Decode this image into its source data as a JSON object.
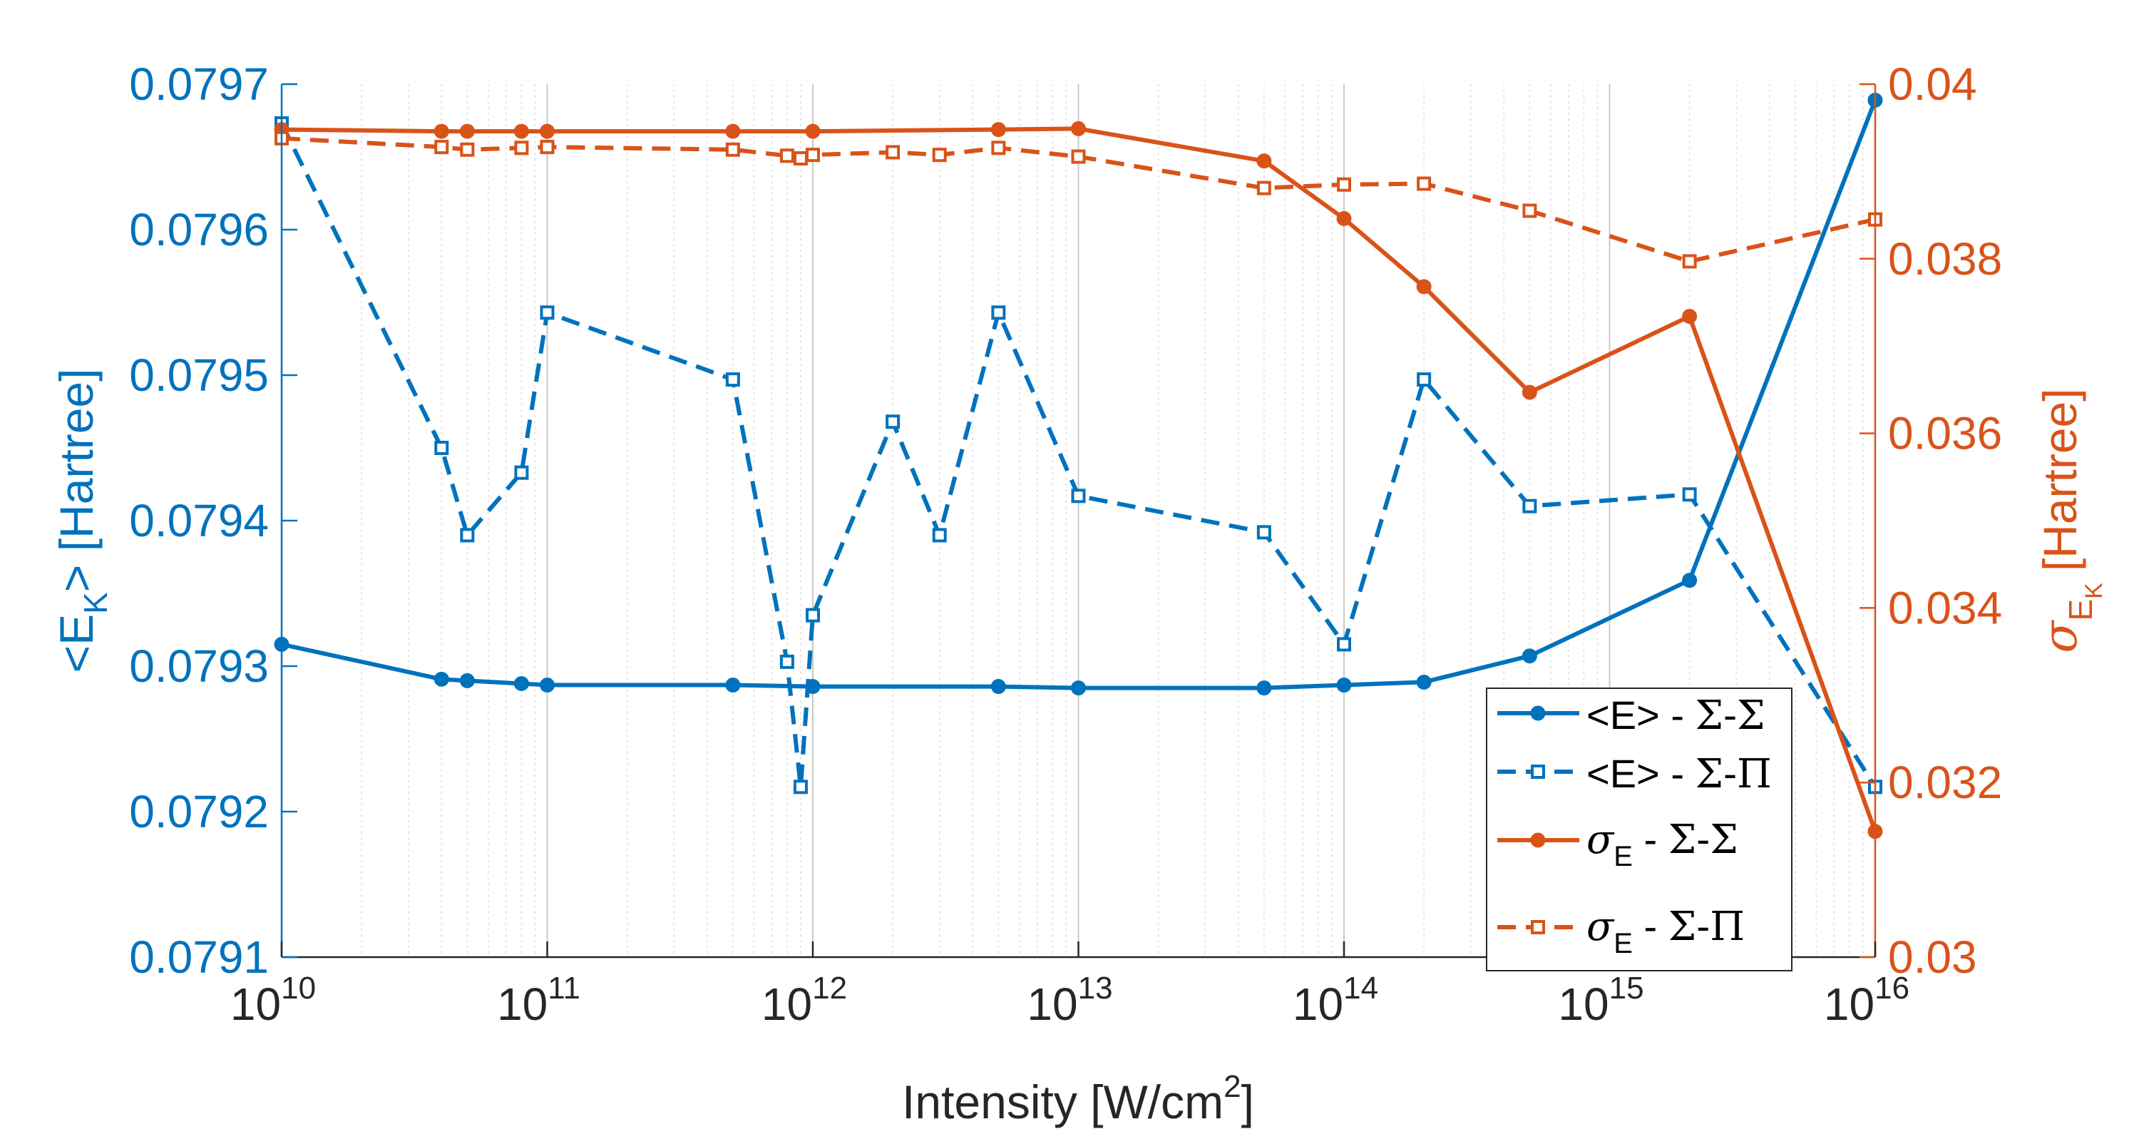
{
  "chart_data": {
    "type": "line",
    "x_scale": "log",
    "xlabel": "Intensity [W/cm",
    "xlabel_sup": "2",
    "xlabel_end": "]",
    "xlim": [
      10000000000.0,
      1e+16
    ],
    "x_ticks": [
      {
        "base": "10",
        "exp": "10"
      },
      {
        "base": "10",
        "exp": "11"
      },
      {
        "base": "10",
        "exp": "12"
      },
      {
        "base": "10",
        "exp": "13"
      },
      {
        "base": "10",
        "exp": "14"
      },
      {
        "base": "10",
        "exp": "15"
      },
      {
        "base": "10",
        "exp": "16"
      }
    ],
    "y_left": {
      "label_pre": "<E",
      "label_sub": "K",
      "label_post": "> [Hartree]",
      "ylim": [
        0.0791,
        0.0797
      ],
      "ticks": [
        "0.0791",
        "0.0792",
        "0.0793",
        "0.0794",
        "0.0795",
        "0.0796",
        "0.0797"
      ],
      "color": "#0072BD"
    },
    "y_right": {
      "label_sigma": "σ",
      "label_sub": "E",
      "label_subsub": "K",
      "label_post": "[Hartree]",
      "ylim": [
        0.03,
        0.04
      ],
      "ticks": [
        "0.03",
        "0.032",
        "0.034",
        "0.036",
        "0.038",
        "0.04"
      ],
      "color": "#D95319"
    },
    "grid": true,
    "legend_position": "bottom-right",
    "series": [
      {
        "name": "E_SS",
        "legend_main": "<E> - ",
        "legend_sym": "Σ-Σ",
        "axis": "left",
        "color": "#0072BD",
        "style": "solid",
        "marker": "circle",
        "x": [
          10000000000.0,
          40000000000.0,
          50000000000.0,
          80000000000.0,
          100000000000.0,
          500000000000.0,
          1000000000000.0,
          5000000000000.0,
          10000000000000.0,
          50000000000000.0,
          100000000000000.0,
          200000000000000.0,
          500000000000000.0,
          2000000000000000.0,
          1e+16
        ],
        "y": [
          0.079315,
          0.079291,
          0.07929,
          0.079288,
          0.079287,
          0.079287,
          0.079286,
          0.079286,
          0.079285,
          0.079285,
          0.079287,
          0.079289,
          0.079307,
          0.079359,
          0.079689
        ]
      },
      {
        "name": "E_SP",
        "legend_main": "<E> - ",
        "legend_sym": "Σ-Π",
        "axis": "left",
        "color": "#0072BD",
        "style": "dashed",
        "marker": "square",
        "x": [
          10000000000.0,
          40000000000.0,
          50000000000.0,
          80000000000.0,
          100000000000.0,
          500000000000.0,
          800000000000.0,
          900000000000.0,
          1000000000000.0,
          2000000000000.0,
          3000000000000.0,
          5000000000000.0,
          10000000000000.0,
          50000000000000.0,
          100000000000000.0,
          200000000000000.0,
          500000000000000.0,
          2000000000000000.0,
          1e+16
        ],
        "y": [
          0.079673,
          0.07945,
          0.07939,
          0.079433,
          0.079543,
          0.079497,
          0.079303,
          0.079217,
          0.079335,
          0.079468,
          0.07939,
          0.079543,
          0.079417,
          0.079392,
          0.079315,
          0.079497,
          0.07941,
          0.079418,
          0.079217
        ]
      },
      {
        "name": "S_SS",
        "legend_main": "σ",
        "legend_sub": "E",
        "legend_mid": " - ",
        "legend_sym": "Σ-Σ",
        "axis": "right",
        "color": "#D95319",
        "style": "solid",
        "marker": "circle",
        "x": [
          10000000000.0,
          40000000000.0,
          50000000000.0,
          80000000000.0,
          100000000000.0,
          500000000000.0,
          1000000000000.0,
          5000000000000.0,
          10000000000000.0,
          50000000000000.0,
          100000000000000.0,
          200000000000000.0,
          500000000000000.0,
          2000000000000000.0,
          1e+16
        ],
        "y": [
          0.03948,
          0.03946,
          0.03946,
          0.03946,
          0.03946,
          0.03946,
          0.03946,
          0.03948,
          0.03949,
          0.03912,
          0.03846,
          0.03768,
          0.03647,
          0.03734,
          0.03144
        ]
      },
      {
        "name": "S_SP",
        "legend_main": "σ",
        "legend_sub": "E",
        "legend_mid": " - ",
        "legend_sym": "Σ-Π",
        "axis": "right",
        "color": "#D95319",
        "style": "dashed",
        "marker": "square",
        "x": [
          10000000000.0,
          40000000000.0,
          50000000000.0,
          80000000000.0,
          100000000000.0,
          500000000000.0,
          800000000000.0,
          900000000000.0,
          1000000000000.0,
          2000000000000.0,
          3000000000000.0,
          5000000000000.0,
          10000000000000.0,
          50000000000000.0,
          100000000000000.0,
          200000000000000.0,
          500000000000000.0,
          2000000000000000.0,
          1e+16
        ],
        "y": [
          0.03938,
          0.03928,
          0.03925,
          0.03927,
          0.03928,
          0.03925,
          0.03918,
          0.03915,
          0.03919,
          0.03922,
          0.03919,
          0.03927,
          0.03917,
          0.03881,
          0.03885,
          0.03886,
          0.03855,
          0.03797,
          0.03845
        ]
      }
    ]
  }
}
